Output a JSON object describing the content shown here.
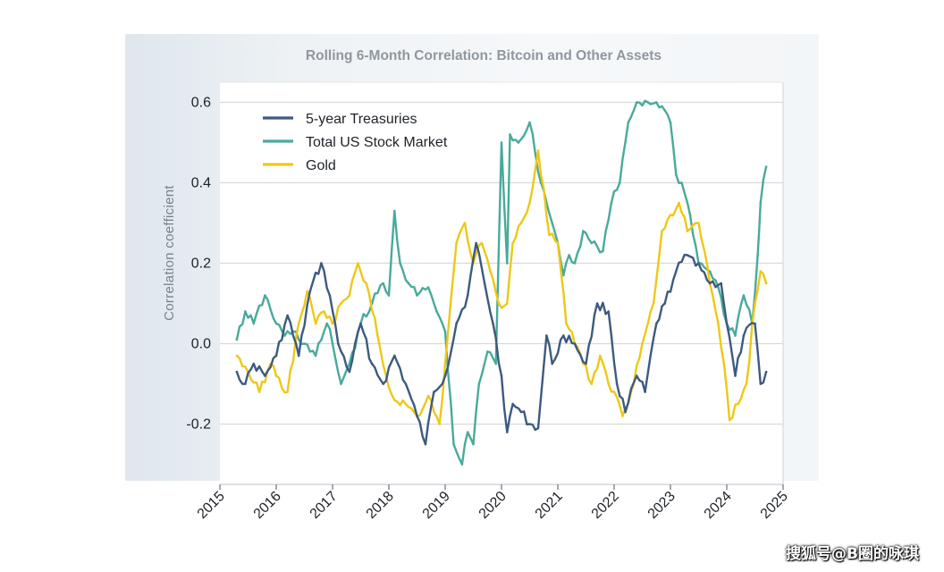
{
  "chart_data": {
    "type": "line",
    "title": "Rolling 6-Month Correlation: Bitcoin and Other Assets",
    "xlabel": "",
    "ylabel": "Correlation coefficient",
    "xlim": [
      2015,
      2025
    ],
    "ylim": [
      -0.35,
      0.65
    ],
    "x_ticks": [
      2015,
      2016,
      2017,
      2018,
      2019,
      2020,
      2021,
      2022,
      2023,
      2024,
      2025
    ],
    "x_tick_labels": [
      "2015",
      "2016",
      "2017",
      "2018",
      "2019",
      "2020",
      "2021",
      "2022",
      "2023",
      "2024",
      "2025"
    ],
    "y_ticks": [
      -0.2,
      0.0,
      0.2,
      0.4,
      0.6
    ],
    "y_tick_labels": [
      "-0.2",
      "0.0",
      "0.2",
      "0.4",
      "0.6"
    ],
    "grid": true,
    "legend_position": "top-left",
    "series": [
      {
        "name": "5-year Treasuries",
        "color": "#3d5a80",
        "x": [
          2015.3,
          2015.45,
          2015.6,
          2015.8,
          2016.0,
          2016.2,
          2016.4,
          2016.6,
          2016.8,
          2016.95,
          2017.1,
          2017.3,
          2017.5,
          2017.7,
          2017.9,
          2018.1,
          2018.3,
          2018.5,
          2018.65,
          2018.8,
          2019.0,
          2019.2,
          2019.4,
          2019.55,
          2019.7,
          2019.85,
          2020.0,
          2020.1,
          2020.2,
          2020.35,
          2020.5,
          2020.65,
          2020.8,
          2020.9,
          2021.1,
          2021.3,
          2021.5,
          2021.7,
          2021.9,
          2022.05,
          2022.2,
          2022.4,
          2022.55,
          2022.75,
          2022.9,
          2023.1,
          2023.3,
          2023.5,
          2023.7,
          2023.9,
          2024.0,
          2024.15,
          2024.3,
          2024.5,
          2024.6,
          2024.7
        ],
        "values": [
          -0.07,
          -0.1,
          -0.05,
          -0.08,
          -0.03,
          0.07,
          -0.03,
          0.13,
          0.2,
          0.12,
          0.0,
          -0.07,
          0.05,
          -0.05,
          -0.1,
          -0.03,
          -0.1,
          -0.18,
          -0.25,
          -0.12,
          -0.08,
          0.05,
          0.12,
          0.25,
          0.15,
          0.05,
          -0.08,
          -0.22,
          -0.15,
          -0.17,
          -0.2,
          -0.21,
          0.02,
          -0.05,
          0.02,
          0.0,
          -0.05,
          0.1,
          0.08,
          -0.1,
          -0.17,
          -0.08,
          -0.12,
          0.05,
          0.1,
          0.18,
          0.22,
          0.2,
          0.15,
          0.15,
          0.05,
          -0.08,
          0.02,
          0.05,
          -0.1,
          -0.07
        ]
      },
      {
        "name": "Total US Stock Market",
        "color": "#49aa9a",
        "x": [
          2015.3,
          2015.45,
          2015.6,
          2015.8,
          2016.0,
          2016.15,
          2016.3,
          2016.5,
          2016.7,
          2016.9,
          2017.0,
          2017.15,
          2017.3,
          2017.5,
          2017.7,
          2017.9,
          2018.0,
          2018.1,
          2018.2,
          2018.35,
          2018.5,
          2018.7,
          2018.85,
          2019.0,
          2019.15,
          2019.3,
          2019.4,
          2019.5,
          2019.6,
          2019.75,
          2019.9,
          2020.0,
          2020.1,
          2020.15,
          2020.3,
          2020.5,
          2020.7,
          2020.8,
          2020.9,
          2021.0,
          2021.1,
          2021.2,
          2021.3,
          2021.45,
          2021.6,
          2021.8,
          2021.95,
          2022.1,
          2022.25,
          2022.4,
          2022.6,
          2022.75,
          2022.9,
          2023.0,
          2023.1,
          2023.2,
          2023.35,
          2023.5,
          2023.7,
          2023.85,
          2024.0,
          2024.15,
          2024.3,
          2024.45,
          2024.55,
          2024.6,
          2024.7
        ],
        "values": [
          0.01,
          0.08,
          0.05,
          0.12,
          0.05,
          0.02,
          0.03,
          0.0,
          -0.03,
          0.05,
          0.0,
          -0.1,
          -0.05,
          0.05,
          0.1,
          0.15,
          0.12,
          0.33,
          0.2,
          0.15,
          0.12,
          0.14,
          0.08,
          0.03,
          -0.25,
          -0.3,
          -0.22,
          -0.25,
          -0.1,
          -0.02,
          -0.05,
          0.5,
          0.2,
          0.52,
          0.5,
          0.55,
          0.4,
          0.35,
          0.3,
          0.25,
          0.17,
          0.22,
          0.2,
          0.28,
          0.25,
          0.23,
          0.35,
          0.4,
          0.55,
          0.6,
          0.6,
          0.6,
          0.58,
          0.55,
          0.42,
          0.4,
          0.32,
          0.2,
          0.18,
          0.14,
          0.05,
          0.02,
          0.12,
          0.05,
          0.22,
          0.35,
          0.44
        ]
      },
      {
        "name": "Gold",
        "color": "#eec816",
        "x": [
          2015.3,
          2015.5,
          2015.7,
          2015.9,
          2016.0,
          2016.2,
          2016.4,
          2016.55,
          2016.7,
          2016.85,
          2017.0,
          2017.15,
          2017.3,
          2017.45,
          2017.6,
          2017.8,
          2017.95,
          2018.1,
          2018.3,
          2018.5,
          2018.7,
          2018.9,
          2019.0,
          2019.2,
          2019.35,
          2019.5,
          2019.65,
          2019.8,
          2019.95,
          2020.1,
          2020.2,
          2020.35,
          2020.5,
          2020.65,
          2020.85,
          2021.0,
          2021.15,
          2021.3,
          2021.45,
          2021.6,
          2021.75,
          2021.9,
          2022.0,
          2022.15,
          2022.3,
          2022.5,
          2022.7,
          2022.85,
          2023.0,
          2023.15,
          2023.3,
          2023.5,
          2023.7,
          2023.85,
          2023.95,
          2024.05,
          2024.2,
          2024.35,
          2024.5,
          2024.6,
          2024.7
        ],
        "values": [
          -0.03,
          -0.07,
          -0.12,
          -0.05,
          -0.08,
          -0.12,
          0.05,
          0.13,
          0.05,
          0.08,
          0.05,
          0.1,
          0.12,
          0.2,
          0.15,
          0.02,
          -0.08,
          -0.14,
          -0.15,
          -0.18,
          -0.13,
          -0.2,
          -0.05,
          0.25,
          0.3,
          0.2,
          0.25,
          0.18,
          0.1,
          0.1,
          0.25,
          0.3,
          0.35,
          0.48,
          0.27,
          0.25,
          0.05,
          0.0,
          -0.05,
          -0.1,
          -0.03,
          -0.1,
          -0.12,
          -0.18,
          -0.12,
          0.0,
          0.1,
          0.28,
          0.32,
          0.35,
          0.28,
          0.3,
          0.15,
          0.05,
          -0.05,
          -0.19,
          -0.15,
          -0.1,
          0.1,
          0.18,
          0.15
        ]
      }
    ]
  },
  "watermark": "搜狐号@B圈的咏琪"
}
